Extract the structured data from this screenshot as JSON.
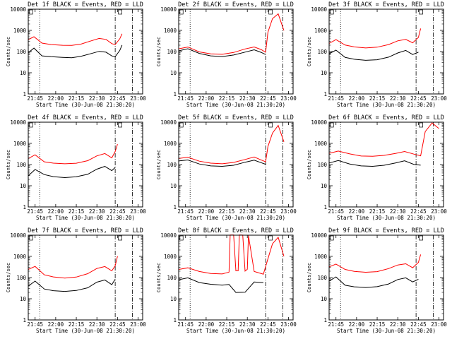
{
  "chart_data": [
    {
      "type": "line",
      "title": "Det 1f BLACK = Events, RED = LLD",
      "xlabel": "Start Time (30-Jun-08 21:30:20)",
      "ylabel": "Counts/sec",
      "yscale": "log",
      "ylim": [
        1,
        10000
      ],
      "x_ticks": [
        "21:45",
        "22:00",
        "22:15",
        "22:30",
        "22:45",
        "23:00"
      ],
      "y_ticks": [
        "1",
        "10",
        "100",
        "1000",
        "10000"
      ],
      "series": [
        {
          "color": "#000000",
          "x": [
            0,
            0.05,
            0.12,
            0.2,
            0.3,
            0.38,
            0.46,
            0.55,
            0.62,
            0.68,
            0.73,
            0.76,
            0.8,
            0.82
          ],
          "y": [
            90,
            150,
            65,
            60,
            55,
            52,
            60,
            80,
            100,
            90,
            60,
            55,
            110,
            200
          ]
        },
        {
          "color": "#ff0000",
          "x": [
            0,
            0.05,
            0.12,
            0.2,
            0.3,
            0.38,
            0.46,
            0.55,
            0.62,
            0.68,
            0.73,
            0.76,
            0.8,
            0.82
          ],
          "y": [
            380,
            520,
            260,
            220,
            200,
            195,
            220,
            310,
            400,
            360,
            230,
            210,
            400,
            700
          ]
        }
      ]
    },
    {
      "type": "line",
      "title": "Det 2f BLACK = Events, RED = LLD",
      "xlabel": "Start Time (30-Jun-08 21:30:20)",
      "ylabel": "Counts/sec",
      "yscale": "log",
      "ylim": [
        1,
        10000
      ],
      "x_ticks": [
        "21:45",
        "22:00",
        "22:15",
        "22:30",
        "22:45",
        "23:00"
      ],
      "y_ticks": [
        "1",
        "10",
        "100",
        "1000",
        "10000"
      ],
      "series": [
        {
          "color": "#000000",
          "x": [
            0,
            0.08,
            0.18,
            0.28,
            0.38,
            0.48,
            0.58,
            0.66,
            0.72,
            0.76
          ],
          "y": [
            110,
            140,
            85,
            65,
            60,
            70,
            95,
            120,
            90,
            70
          ]
        },
        {
          "color": "#ff0000",
          "x": [
            0,
            0.08,
            0.18,
            0.28,
            0.38,
            0.48,
            0.58,
            0.66,
            0.72,
            0.76,
            0.78,
            0.82,
            0.87,
            0.92
          ],
          "y": [
            140,
            170,
            100,
            80,
            75,
            90,
            130,
            160,
            120,
            90,
            800,
            3500,
            6000,
            1000
          ]
        }
      ]
    },
    {
      "type": "line",
      "title": "Det 3f BLACK = Events, RED = LLD",
      "xlabel": "Start Time (30-Jun-08 21:30:20)",
      "ylabel": "Counts/sec",
      "yscale": "log",
      "ylim": [
        1,
        10000
      ],
      "x_ticks": [
        "21:45",
        "22:00",
        "22:15",
        "22:30",
        "22:45",
        "23:00"
      ],
      "y_ticks": [
        "1",
        "10",
        "100",
        "1000",
        "10000"
      ],
      "series": [
        {
          "color": "#000000",
          "x": [
            0,
            0.06,
            0.14,
            0.22,
            0.32,
            0.42,
            0.52,
            0.6,
            0.67,
            0.73,
            0.78
          ],
          "y": [
            80,
            120,
            55,
            45,
            40,
            42,
            55,
            85,
            110,
            70,
            90
          ]
        },
        {
          "color": "#ff0000",
          "x": [
            0,
            0.06,
            0.14,
            0.22,
            0.32,
            0.42,
            0.52,
            0.6,
            0.67,
            0.73,
            0.78,
            0.8
          ],
          "y": [
            250,
            380,
            210,
            170,
            150,
            160,
            210,
            310,
            360,
            250,
            450,
            1200
          ]
        }
      ]
    },
    {
      "type": "line",
      "title": "Det 4f BLACK = Events, RED = LLD",
      "xlabel": "Start Time (30-Jun-08 21:30:20)",
      "ylabel": "Counts/sec",
      "yscale": "log",
      "ylim": [
        1,
        10000
      ],
      "x_ticks": [
        "21:45",
        "22:00",
        "22:15",
        "22:30",
        "22:45",
        "23:00"
      ],
      "y_ticks": [
        "1",
        "10",
        "100",
        "1000",
        "10000"
      ],
      "series": [
        {
          "color": "#000000",
          "x": [
            0,
            0.06,
            0.14,
            0.22,
            0.32,
            0.42,
            0.52,
            0.6,
            0.67,
            0.73,
            0.76
          ],
          "y": [
            30,
            60,
            35,
            28,
            25,
            27,
            35,
            60,
            80,
            50,
            70
          ]
        },
        {
          "color": "#ff0000",
          "x": [
            0,
            0.06,
            0.14,
            0.22,
            0.32,
            0.42,
            0.52,
            0.6,
            0.67,
            0.73,
            0.76,
            0.78
          ],
          "y": [
            200,
            300,
            140,
            120,
            110,
            115,
            150,
            250,
            320,
            200,
            400,
            900
          ]
        }
      ]
    },
    {
      "type": "line",
      "title": "Det 5f BLACK = Events, RED = LLD",
      "xlabel": "Start Time (30-Jun-08 21:30:20)",
      "ylabel": "Counts/sec",
      "yscale": "log",
      "ylim": [
        1,
        10000
      ],
      "x_ticks": [
        "21:45",
        "22:00",
        "22:15",
        "22:30",
        "22:45",
        "23:00"
      ],
      "y_ticks": [
        "1",
        "10",
        "100",
        "1000",
        "10000"
      ],
      "series": [
        {
          "color": "#000000",
          "x": [
            0,
            0.08,
            0.18,
            0.28,
            0.38,
            0.48,
            0.58,
            0.66,
            0.72,
            0.76
          ],
          "y": [
            150,
            170,
            110,
            90,
            85,
            95,
            130,
            160,
            120,
            100
          ]
        },
        {
          "color": "#ff0000",
          "x": [
            0,
            0.08,
            0.18,
            0.28,
            0.38,
            0.48,
            0.58,
            0.66,
            0.72,
            0.76,
            0.78,
            0.82,
            0.87,
            0.92
          ],
          "y": [
            200,
            230,
            150,
            120,
            110,
            125,
            170,
            220,
            160,
            130,
            700,
            3000,
            7000,
            1200
          ]
        }
      ]
    },
    {
      "type": "line",
      "title": "Det 6f BLACK = Events, RED = LLD",
      "xlabel": "Start Time (30-Jun-08 21:30:20)",
      "ylabel": "Counts/sec",
      "yscale": "log",
      "ylim": [
        1,
        10000
      ],
      "x_ticks": [
        "21:45",
        "22:00",
        "22:15",
        "22:30",
        "22:45",
        "23:00"
      ],
      "y_ticks": [
        "1",
        "10",
        "100",
        "1000",
        "10000"
      ],
      "series": [
        {
          "color": "#000000",
          "x": [
            0,
            0.08,
            0.18,
            0.28,
            0.38,
            0.48,
            0.58,
            0.66,
            0.74,
            0.8
          ],
          "y": [
            120,
            160,
            110,
            90,
            85,
            95,
            120,
            150,
            100,
            90
          ]
        },
        {
          "color": "#ff0000",
          "x": [
            0,
            0.08,
            0.18,
            0.28,
            0.38,
            0.48,
            0.58,
            0.66,
            0.74,
            0.8,
            0.84,
            0.9,
            0.96
          ],
          "y": [
            350,
            450,
            330,
            260,
            250,
            270,
            330,
            400,
            300,
            250,
            3500,
            9000,
            5000
          ]
        }
      ]
    },
    {
      "type": "line",
      "title": "Det 7f BLACK = Events, RED = LLD",
      "xlabel": "Start Time (30-Jun-08 21:30:20)",
      "ylabel": "Counts/sec",
      "yscale": "log",
      "ylim": [
        1,
        10000
      ],
      "x_ticks": [
        "21:45",
        "22:00",
        "22:15",
        "22:30",
        "22:45",
        "23:00"
      ],
      "y_ticks": [
        "1",
        "10",
        "100",
        "1000",
        "10000"
      ],
      "series": [
        {
          "color": "#000000",
          "x": [
            0,
            0.06,
            0.14,
            0.22,
            0.32,
            0.42,
            0.52,
            0.6,
            0.67,
            0.73,
            0.76
          ],
          "y": [
            40,
            70,
            30,
            25,
            23,
            25,
            33,
            60,
            75,
            45,
            80
          ]
        },
        {
          "color": "#ff0000",
          "x": [
            0,
            0.06,
            0.14,
            0.22,
            0.32,
            0.42,
            0.52,
            0.6,
            0.67,
            0.73,
            0.76,
            0.78
          ],
          "y": [
            250,
            350,
            140,
            110,
            95,
            105,
            150,
            260,
            320,
            200,
            350,
            1000
          ]
        }
      ]
    },
    {
      "type": "line",
      "title": "Det 8f BLACK = Events, RED = LLD",
      "xlabel": "Start Time (30-Jun-08 21:30:20)",
      "ylabel": "Counts/sec",
      "yscale": "log",
      "ylim": [
        1,
        10000
      ],
      "x_ticks": [
        "21:45",
        "22:00",
        "22:15",
        "22:30",
        "22:45",
        "23:00"
      ],
      "y_ticks": [
        "1",
        "10",
        "100",
        "1000",
        "10000"
      ],
      "series": [
        {
          "color": "#000000",
          "x": [
            0,
            0.08,
            0.18,
            0.28,
            0.38,
            0.44,
            0.5,
            0.58,
            0.66,
            0.74
          ],
          "y": [
            80,
            100,
            60,
            50,
            45,
            48,
            20,
            20,
            60,
            55
          ]
        },
        {
          "color": "#ff0000",
          "x": [
            0,
            0.08,
            0.18,
            0.28,
            0.38,
            0.44,
            0.45,
            0.48,
            0.5,
            0.52,
            0.53,
            0.56,
            0.58,
            0.6,
            0.61,
            0.66,
            0.74,
            0.78,
            0.82,
            0.87,
            0.92
          ],
          "y": [
            250,
            300,
            200,
            160,
            150,
            180,
            10000,
            10000,
            200,
            200,
            10000,
            10000,
            200,
            250,
            10000,
            200,
            150,
            800,
            4000,
            8000,
            1000
          ]
        }
      ]
    },
    {
      "type": "line",
      "title": "Det 9f BLACK = Events, RED = LLD",
      "xlabel": "Start Time (30-Jun-08 21:30:20)",
      "ylabel": "Counts/sec",
      "yscale": "log",
      "ylim": [
        1,
        10000
      ],
      "x_ticks": [
        "21:45",
        "22:00",
        "22:15",
        "22:30",
        "22:45",
        "23:00"
      ],
      "y_ticks": [
        "1",
        "10",
        "100",
        "1000",
        "10000"
      ],
      "series": [
        {
          "color": "#000000",
          "x": [
            0,
            0.06,
            0.14,
            0.22,
            0.32,
            0.42,
            0.52,
            0.6,
            0.67,
            0.73,
            0.78
          ],
          "y": [
            70,
            110,
            45,
            38,
            35,
            38,
            50,
            80,
            95,
            60,
            80
          ]
        },
        {
          "color": "#ff0000",
          "x": [
            0,
            0.06,
            0.14,
            0.22,
            0.32,
            0.42,
            0.52,
            0.6,
            0.67,
            0.73,
            0.78,
            0.8
          ],
          "y": [
            330,
            450,
            250,
            200,
            180,
            190,
            260,
            380,
            430,
            280,
            500,
            1200
          ]
        }
      ]
    }
  ]
}
